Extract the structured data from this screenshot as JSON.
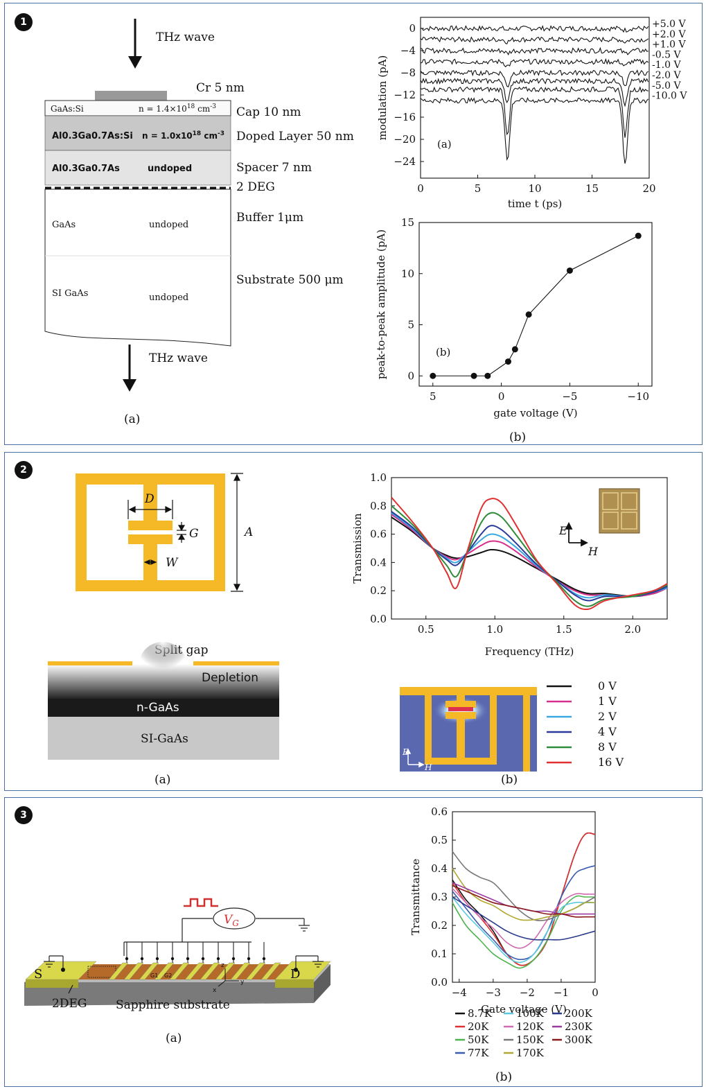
{
  "panel_badges": [
    "1",
    "2",
    "3"
  ],
  "figure1": {
    "diagram": {
      "thz_top": "THz wave",
      "thz_bottom": "THz wave",
      "cr_label": "Cr 5 nm",
      "layers": [
        {
          "name": "GaAs:Si",
          "doping": "n = 1.4×10",
          "doping_exp": "18",
          "doping_unit": " cm",
          "doping_unit_exp": "-3",
          "side": "Cap 10 nm"
        },
        {
          "name": "Al0.3Ga0.7As:Si",
          "doping": "n = 1.0x10",
          "doping_exp": "18",
          "doping_unit": " cm",
          "doping_unit_exp": "-3",
          "side": "Doped Layer 50 nm"
        },
        {
          "name": "Al0.3Ga0.7As",
          "doping": "undoped",
          "side": "Spacer 7 nm"
        },
        {
          "name": "",
          "doping": "",
          "side": "2 DEG"
        },
        {
          "name": "GaAs",
          "doping": "undoped",
          "side": "Buffer 1μm"
        },
        {
          "name": "SI GaAs",
          "doping": "undoped",
          "side": "Substrate 500 μm"
        }
      ],
      "caption": "(a)"
    },
    "chart_top": {
      "type": "line",
      "panel_label": "(a)",
      "xlabel": "time t (ps)",
      "ylabel": "modulation (pA)",
      "xlim": [
        0,
        20
      ],
      "ylim": [
        -27,
        2
      ],
      "xticks": [
        0,
        5,
        10,
        15,
        20
      ],
      "yticks": [
        0,
        -4,
        -8,
        -12,
        -16,
        -20,
        -24
      ],
      "series": [
        {
          "name": "+5.0 V",
          "offset": 0,
          "dip": 0.3
        },
        {
          "name": "+2.0 V",
          "offset": -2,
          "dip": 0.4
        },
        {
          "name": "+1.0 V",
          "offset": -4,
          "dip": 0.5
        },
        {
          "name": "-0.5 V",
          "offset": -6,
          "dip": 0.8
        },
        {
          "name": "-1.0 V",
          "offset": -8,
          "dip": 2.5
        },
        {
          "name": "-2.0 V",
          "offset": -9.5,
          "dip": 4
        },
        {
          "name": "-5.0 V",
          "offset": -11,
          "dip": 8
        },
        {
          "name": "-10.0 V",
          "offset": -13,
          "dip": 11
        }
      ]
    },
    "chart_bottom": {
      "type": "line",
      "panel_label": "(b)",
      "xlabel": "gate voltage (V)",
      "ylabel": "peak-to-peak amplitude (pA)",
      "xlim": [
        6,
        -11
      ],
      "ylim": [
        -1,
        15
      ],
      "xticks": [
        5,
        0,
        -5,
        -10
      ],
      "yticks": [
        0,
        5,
        10,
        15
      ],
      "x": [
        5,
        2,
        1,
        -0.5,
        -1,
        -2,
        -5,
        -10
      ],
      "y": [
        0,
        0,
        0,
        1.4,
        2.6,
        6.0,
        10.3,
        13.7
      ]
    },
    "caption_b": "(b)"
  },
  "figure2": {
    "diagram": {
      "labels": {
        "D": "D",
        "G": "G",
        "W": "W",
        "A": "A"
      },
      "split_gap": "Split gap",
      "depletion": "Depletion",
      "n_gaas": "n-GaAs",
      "si_gaas": "SI-GaAs",
      "caption": "(a)"
    },
    "chart": {
      "type": "line",
      "xlabel": "Frequency (THz)",
      "ylabel": "Transmission",
      "xlim": [
        0.25,
        2.25
      ],
      "ylim": [
        0,
        1.0
      ],
      "xticks": [
        0.5,
        1.0,
        1.5,
        2.0
      ],
      "yticks": [
        0.0,
        0.2,
        0.4,
        0.6,
        0.8,
        1.0
      ],
      "inset_e": "E",
      "inset_h": "H",
      "x": [
        0.25,
        0.4,
        0.55,
        0.65,
        0.72,
        0.8,
        0.9,
        0.97,
        1.05,
        1.15,
        1.3,
        1.45,
        1.58,
        1.68,
        1.8,
        2.0,
        2.15,
        2.25
      ],
      "series": [
        {
          "name": "0 V",
          "color": "#111111",
          "values": [
            0.72,
            0.62,
            0.5,
            0.45,
            0.43,
            0.44,
            0.47,
            0.49,
            0.48,
            0.44,
            0.36,
            0.28,
            0.21,
            0.18,
            0.18,
            0.16,
            0.18,
            0.22
          ]
        },
        {
          "name": "1 V",
          "color": "#d6308a",
          "values": [
            0.74,
            0.63,
            0.5,
            0.44,
            0.42,
            0.46,
            0.52,
            0.55,
            0.54,
            0.48,
            0.37,
            0.27,
            0.2,
            0.17,
            0.17,
            0.16,
            0.18,
            0.22
          ]
        },
        {
          "name": "2 V",
          "color": "#3aa8e0",
          "values": [
            0.75,
            0.64,
            0.5,
            0.43,
            0.4,
            0.47,
            0.56,
            0.6,
            0.58,
            0.51,
            0.38,
            0.27,
            0.18,
            0.15,
            0.17,
            0.16,
            0.19,
            0.22
          ]
        },
        {
          "name": "4 V",
          "color": "#2a3a9a",
          "values": [
            0.76,
            0.65,
            0.5,
            0.42,
            0.38,
            0.47,
            0.6,
            0.66,
            0.63,
            0.54,
            0.39,
            0.27,
            0.17,
            0.13,
            0.16,
            0.16,
            0.19,
            0.23
          ]
        },
        {
          "name": "8 V",
          "color": "#2e8b3a",
          "values": [
            0.8,
            0.67,
            0.5,
            0.38,
            0.3,
            0.47,
            0.68,
            0.75,
            0.72,
            0.6,
            0.41,
            0.26,
            0.13,
            0.09,
            0.14,
            0.16,
            0.2,
            0.24
          ]
        },
        {
          "name": "16 V",
          "color": "#e03030",
          "values": [
            0.86,
            0.69,
            0.5,
            0.33,
            0.22,
            0.48,
            0.78,
            0.85,
            0.82,
            0.67,
            0.42,
            0.25,
            0.1,
            0.07,
            0.13,
            0.17,
            0.2,
            0.25
          ]
        }
      ],
      "sim_e": "E",
      "sim_h": "H",
      "caption": "(b)"
    }
  },
  "figure3": {
    "diagram": {
      "vg_label": "V",
      "vg_sub": "G",
      "s_label": "S",
      "d_label": "D",
      "twodeg": "2DEG",
      "substrate": "Sapphire substrate",
      "g1": "G1",
      "g2": "G2",
      "caption": "(a)"
    },
    "chart": {
      "type": "line",
      "xlabel": "Gate voltage (V)",
      "ylabel": "Transmittance",
      "xlim": [
        -4.2,
        0
      ],
      "ylim": [
        0,
        0.6
      ],
      "xticks": [
        -4,
        -3,
        -2,
        -1,
        0
      ],
      "yticks": [
        0.0,
        0.1,
        0.2,
        0.3,
        0.4,
        0.5,
        0.6
      ],
      "x": [
        -4.2,
        -3.8,
        -3.4,
        -3.0,
        -2.6,
        -2.2,
        -1.8,
        -1.4,
        -1.0,
        -0.6,
        -0.3,
        0
      ],
      "series": [
        {
          "name": "8.7K",
          "color": "#111111",
          "values": [
            0.36,
            0.29,
            0.24,
            0.18,
            0.1,
            0.06,
            0.08,
            0.15,
            0.3,
            0.45,
            0.52,
            0.52
          ]
        },
        {
          "name": "20K",
          "color": "#e03030",
          "values": [
            0.35,
            0.28,
            0.23,
            0.17,
            0.1,
            0.06,
            0.08,
            0.15,
            0.3,
            0.45,
            0.52,
            0.52
          ]
        },
        {
          "name": "50K",
          "color": "#4cb34c",
          "values": [
            0.28,
            0.2,
            0.15,
            0.1,
            0.07,
            0.05,
            0.08,
            0.15,
            0.25,
            0.3,
            0.3,
            0.3
          ]
        },
        {
          "name": "77K",
          "color": "#3a5ab0",
          "values": [
            0.32,
            0.26,
            0.2,
            0.15,
            0.1,
            0.08,
            0.1,
            0.18,
            0.3,
            0.38,
            0.4,
            0.41
          ]
        },
        {
          "name": "100K",
          "color": "#5cc8e0",
          "values": [
            0.3,
            0.24,
            0.19,
            0.14,
            0.09,
            0.07,
            0.1,
            0.18,
            0.26,
            0.28,
            0.28,
            0.28
          ]
        },
        {
          "name": "120K",
          "color": "#d06ab0",
          "values": [
            0.33,
            0.28,
            0.23,
            0.19,
            0.14,
            0.12,
            0.15,
            0.22,
            0.28,
            0.31,
            0.31,
            0.31
          ]
        },
        {
          "name": "150K",
          "color": "#777777",
          "values": [
            0.46,
            0.4,
            0.37,
            0.35,
            0.3,
            0.25,
            0.22,
            0.22,
            0.24,
            0.26,
            0.28,
            0.3
          ]
        },
        {
          "name": "170K",
          "color": "#b0a830",
          "values": [
            0.4,
            0.33,
            0.29,
            0.27,
            0.24,
            0.22,
            0.22,
            0.23,
            0.24,
            0.26,
            0.28,
            0.28
          ]
        },
        {
          "name": "200K",
          "color": "#2a3a8a",
          "values": [
            0.3,
            0.27,
            0.24,
            0.21,
            0.18,
            0.16,
            0.15,
            0.15,
            0.15,
            0.16,
            0.17,
            0.18
          ]
        },
        {
          "name": "230K",
          "color": "#9a3aa0",
          "values": [
            0.35,
            0.33,
            0.31,
            0.29,
            0.27,
            0.26,
            0.25,
            0.25,
            0.24,
            0.24,
            0.24,
            0.24
          ]
        },
        {
          "name": "300K",
          "color": "#8a1a1a",
          "values": [
            0.34,
            0.32,
            0.3,
            0.28,
            0.27,
            0.26,
            0.25,
            0.24,
            0.24,
            0.23,
            0.23,
            0.23
          ]
        }
      ],
      "caption": "(b)"
    }
  }
}
